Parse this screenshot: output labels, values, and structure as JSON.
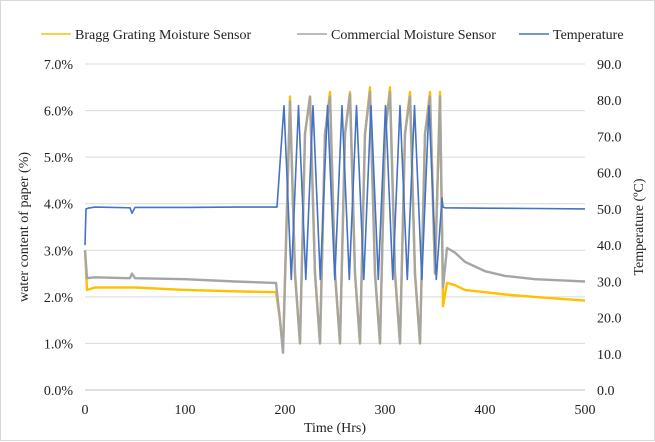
{
  "chart_data": {
    "type": "line",
    "title": "",
    "xlabel": "Time (Hrs)",
    "ylabel_left": "water content of paper (%)",
    "ylabel_right": "Temperature (ºC)",
    "xlim": [
      0,
      500
    ],
    "ylim_left": [
      0,
      7
    ],
    "ylim_right": [
      0,
      90
    ],
    "x_ticks": [
      "0",
      "100",
      "200",
      "300",
      "400",
      "500"
    ],
    "y_left_ticks": [
      "0.0%",
      "1.0%",
      "2.0%",
      "3.0%",
      "4.0%",
      "5.0%",
      "6.0%",
      "7.0%"
    ],
    "y_right_ticks": [
      "0.0",
      "10.0",
      "20.0",
      "30.0",
      "40.0",
      "50.0",
      "60.0",
      "70.0",
      "80.0",
      "90.0"
    ],
    "grid": "horizontal",
    "legend_position": "top",
    "series": [
      {
        "name": "Bragg Grating Moisture Sensor",
        "axis": "left",
        "color": "#ffc000",
        "x": [
          0,
          2,
          10,
          50,
          100,
          150,
          190,
          191,
          195,
          198,
          205,
          210,
          215,
          220,
          225,
          230,
          235,
          240,
          245,
          250,
          255,
          260,
          265,
          270,
          275,
          280,
          285,
          290,
          295,
          300,
          305,
          310,
          315,
          320,
          325,
          330,
          335,
          340,
          345,
          350,
          355,
          358,
          362,
          370,
          380,
          400,
          420,
          450,
          480,
          500
        ],
        "values": [
          3.0,
          2.15,
          2.2,
          2.2,
          2.15,
          2.12,
          2.1,
          2.1,
          1.5,
          0.85,
          6.3,
          2.5,
          1.0,
          5.5,
          6.3,
          2.5,
          1.0,
          5.5,
          6.4,
          2.5,
          1.0,
          5.5,
          6.4,
          2.5,
          1.0,
          5.5,
          6.5,
          2.5,
          1.0,
          5.5,
          6.5,
          2.5,
          1.0,
          5.5,
          6.4,
          2.5,
          1.0,
          5.5,
          6.4,
          2.5,
          6.4,
          1.8,
          2.3,
          2.25,
          2.15,
          2.1,
          2.05,
          2.0,
          1.95,
          1.92
        ]
      },
      {
        "name": "Commercial Moisture Sensor",
        "axis": "left",
        "color": "#a5a5a5",
        "x": [
          0,
          2,
          10,
          45,
          47,
          50,
          100,
          150,
          190,
          191,
          195,
          198,
          205,
          210,
          215,
          220,
          225,
          230,
          235,
          240,
          245,
          250,
          255,
          260,
          265,
          270,
          275,
          280,
          285,
          290,
          295,
          300,
          305,
          310,
          315,
          320,
          325,
          330,
          335,
          340,
          345,
          350,
          355,
          358,
          362,
          370,
          380,
          400,
          420,
          450,
          480,
          500
        ],
        "values": [
          3.0,
          2.4,
          2.42,
          2.4,
          2.5,
          2.4,
          2.38,
          2.33,
          2.3,
          2.3,
          1.5,
          0.8,
          6.2,
          2.5,
          1.0,
          5.5,
          6.3,
          2.5,
          1.0,
          5.5,
          6.3,
          2.5,
          1.0,
          5.5,
          6.35,
          2.5,
          1.0,
          5.5,
          6.4,
          2.5,
          1.0,
          5.5,
          6.4,
          2.5,
          1.0,
          5.5,
          6.3,
          2.5,
          1.0,
          5.5,
          6.3,
          2.5,
          6.3,
          2.2,
          3.05,
          2.95,
          2.75,
          2.55,
          2.45,
          2.38,
          2.35,
          2.33
        ]
      },
      {
        "name": "Temperature",
        "axis": "right",
        "color": "#4472c4",
        "x": [
          0,
          1,
          3,
          10,
          45,
          47,
          50,
          100,
          150,
          191,
          192,
          199,
          206.25,
          213.5,
          220.75,
          228,
          235.25,
          242.5,
          249.75,
          257,
          264.25,
          271.5,
          278.75,
          286,
          293.25,
          300.5,
          307.75,
          315,
          322.25,
          329.5,
          336.75,
          344,
          351.25,
          357,
          358,
          360,
          400,
          450,
          500
        ],
        "values": [
          40.0,
          50.0,
          50.2,
          50.5,
          50.3,
          48.8,
          50.4,
          50.4,
          50.5,
          50.5,
          50.5,
          78.5,
          30.5,
          78.5,
          30.5,
          78.5,
          30.5,
          78.5,
          30.5,
          78.5,
          30.5,
          78.5,
          30.5,
          78.5,
          30.5,
          78.5,
          30.5,
          78.5,
          30.5,
          78.5,
          30.5,
          78.5,
          30.5,
          53.0,
          50.5,
          50.3,
          50.2,
          50.1,
          50.0
        ]
      }
    ]
  }
}
